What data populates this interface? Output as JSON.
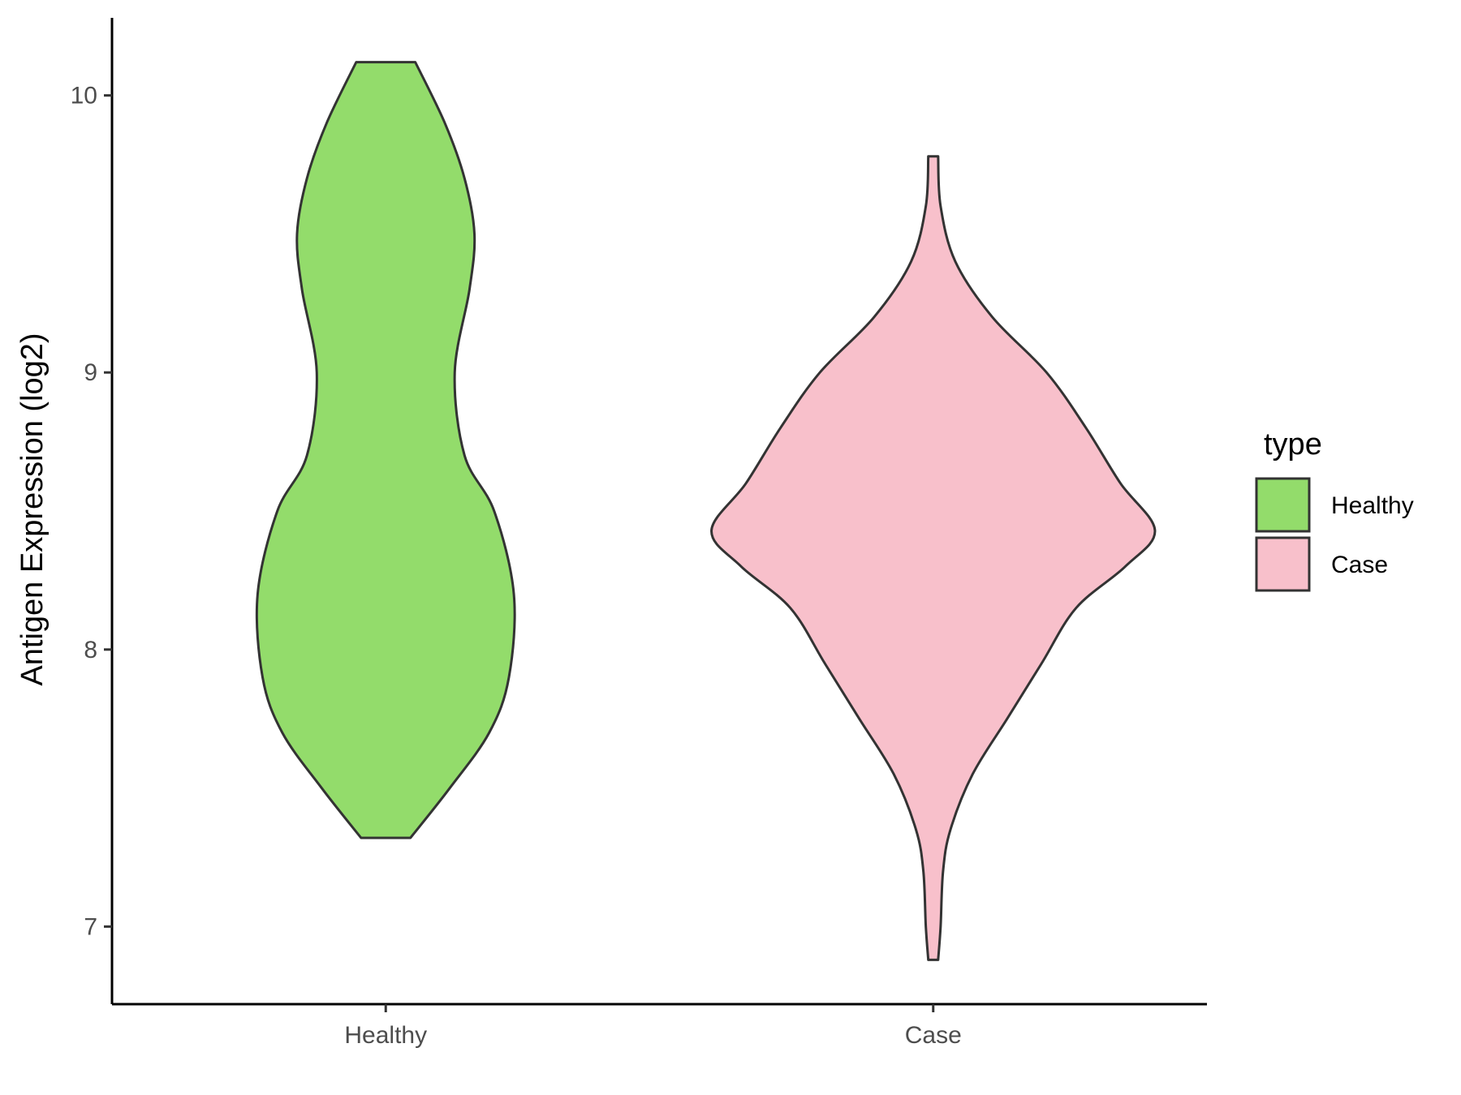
{
  "chart_data": {
    "type": "violin",
    "title": "",
    "xlabel": "",
    "ylabel": "Antigen Expression (log2)",
    "ylim": [
      6.72,
      10.28
    ],
    "y_ticks": [
      7,
      8,
      9,
      10
    ],
    "grid": false,
    "categories": [
      "Healthy",
      "Case"
    ],
    "legend": {
      "title": "type",
      "position": "right",
      "entries": [
        {
          "label": "Healthy",
          "color": "#93dc6b"
        },
        {
          "label": "Case",
          "color": "#f8c0cb"
        }
      ]
    },
    "series": [
      {
        "category": "Healthy",
        "color": "#93dc6b",
        "min": 7.32,
        "max": 10.12,
        "density_profile": [
          {
            "y": 7.32,
            "half_width": 0.05
          },
          {
            "y": 7.5,
            "half_width": 0.13
          },
          {
            "y": 7.7,
            "half_width": 0.21
          },
          {
            "y": 7.9,
            "half_width": 0.25
          },
          {
            "y": 8.2,
            "half_width": 0.26
          },
          {
            "y": 8.5,
            "half_width": 0.22
          },
          {
            "y": 8.7,
            "half_width": 0.16
          },
          {
            "y": 9.0,
            "half_width": 0.14
          },
          {
            "y": 9.3,
            "half_width": 0.17
          },
          {
            "y": 9.5,
            "half_width": 0.18
          },
          {
            "y": 9.7,
            "half_width": 0.16
          },
          {
            "y": 9.9,
            "half_width": 0.12
          },
          {
            "y": 10.12,
            "half_width": 0.06
          }
        ]
      },
      {
        "category": "Case",
        "color": "#f8c0cb",
        "min": 6.88,
        "max": 9.78,
        "density_profile": [
          {
            "y": 6.88,
            "half_width": 0.01
          },
          {
            "y": 7.0,
            "half_width": 0.015
          },
          {
            "y": 7.2,
            "half_width": 0.02
          },
          {
            "y": 7.35,
            "half_width": 0.035
          },
          {
            "y": 7.55,
            "half_width": 0.08
          },
          {
            "y": 7.75,
            "half_width": 0.15
          },
          {
            "y": 7.95,
            "half_width": 0.22
          },
          {
            "y": 8.15,
            "half_width": 0.29
          },
          {
            "y": 8.3,
            "half_width": 0.39
          },
          {
            "y": 8.43,
            "half_width": 0.45
          },
          {
            "y": 8.6,
            "half_width": 0.38
          },
          {
            "y": 8.8,
            "half_width": 0.31
          },
          {
            "y": 9.0,
            "half_width": 0.23
          },
          {
            "y": 9.2,
            "half_width": 0.12
          },
          {
            "y": 9.4,
            "half_width": 0.045
          },
          {
            "y": 9.6,
            "half_width": 0.015
          },
          {
            "y": 9.78,
            "half_width": 0.01
          }
        ]
      }
    ]
  }
}
